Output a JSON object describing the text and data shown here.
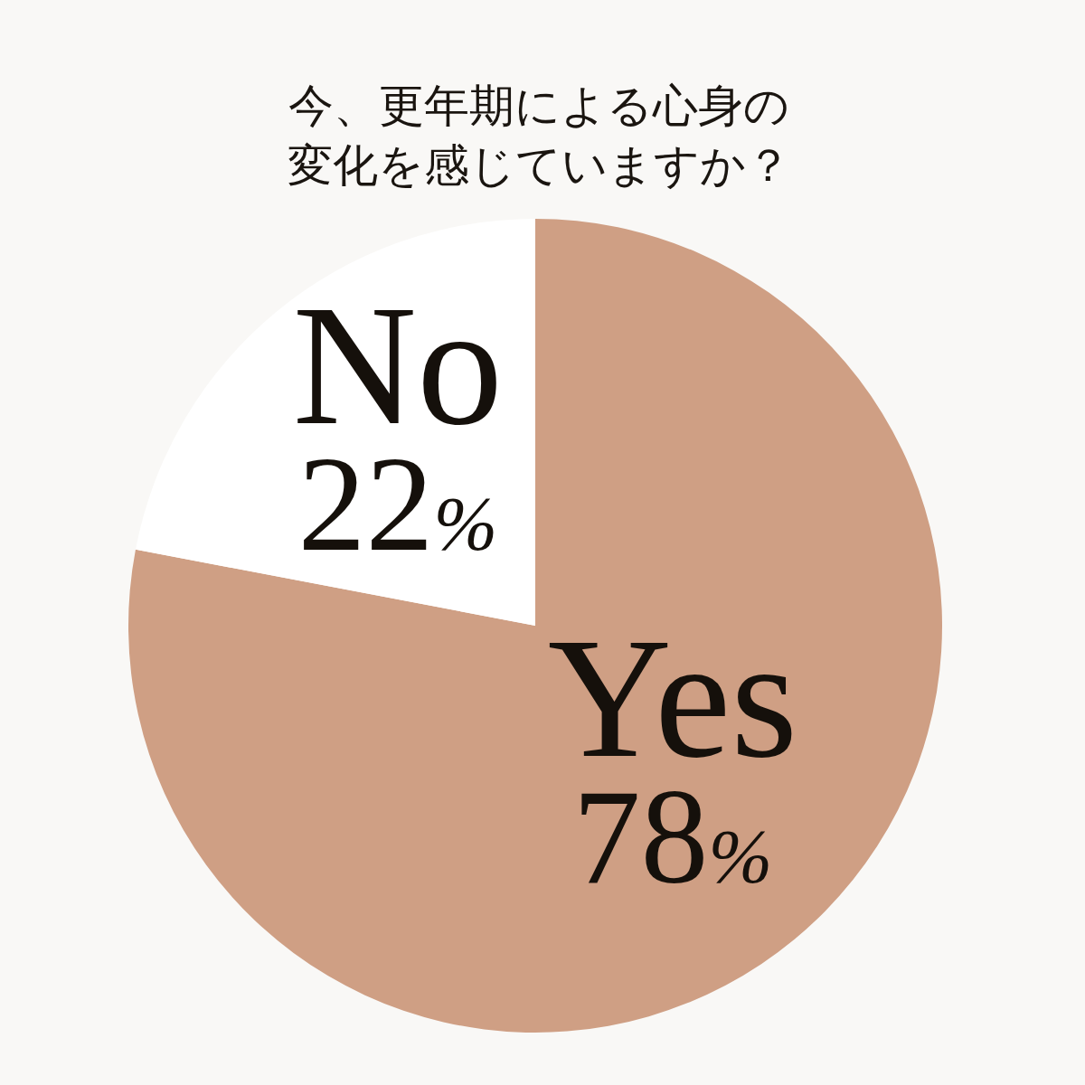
{
  "chart_data": {
    "type": "pie",
    "title": "今、更年期による心身の変化を感じていますか？",
    "categories": [
      "Yes",
      "No"
    ],
    "values": [
      78,
      22
    ],
    "colors": [
      "#cf9f84",
      "#ffffff"
    ],
    "value_labels": [
      "78%",
      "22%"
    ]
  }
}
